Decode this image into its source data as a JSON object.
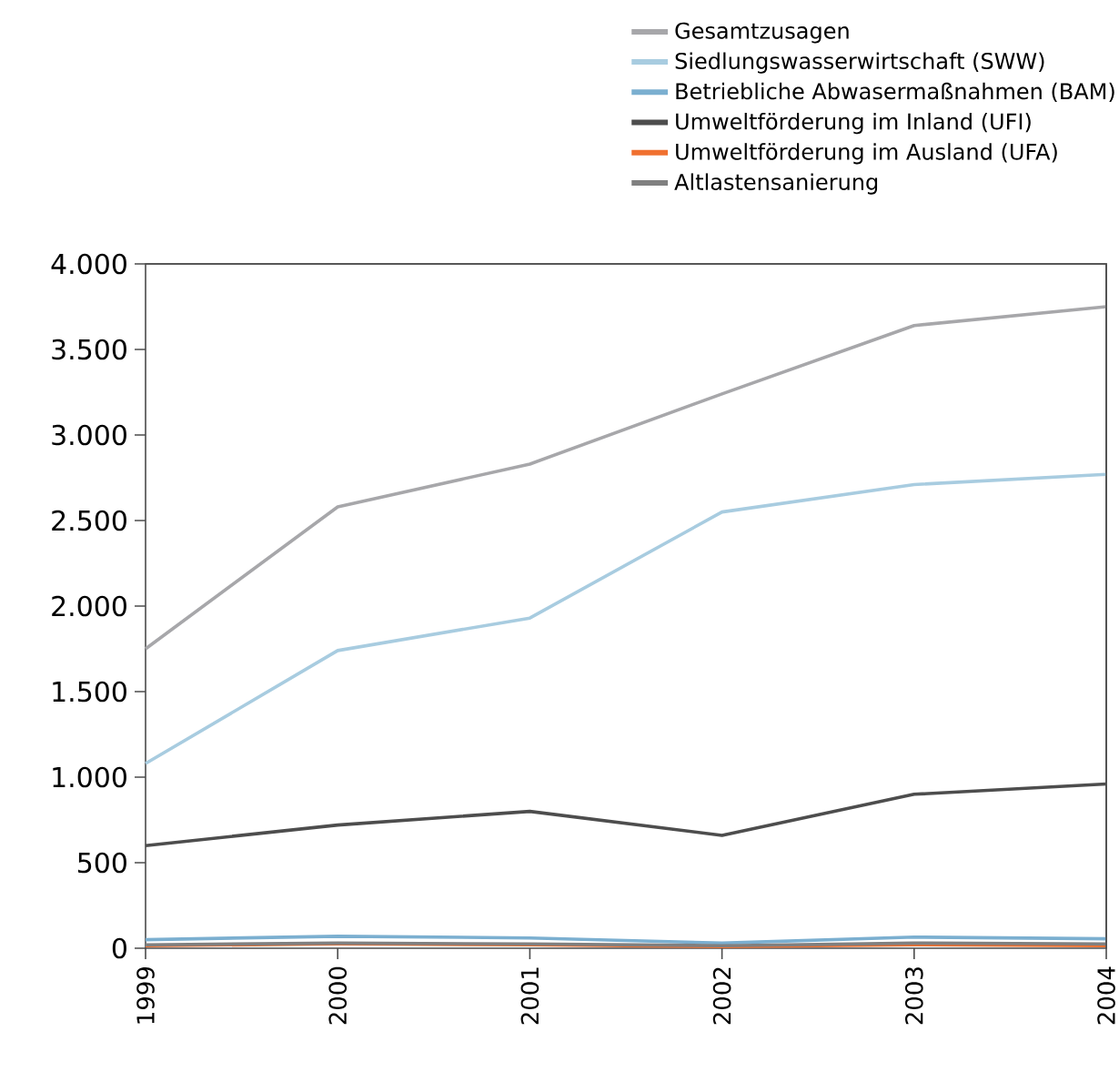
{
  "chart_data": {
    "type": "line",
    "categories": [
      "1999",
      "2000",
      "2001",
      "2002",
      "2003",
      "2004"
    ],
    "series": [
      {
        "name": "Gesamtzusagen",
        "color": "#a7a7aa",
        "values": [
          1750,
          2580,
          2830,
          3240,
          3640,
          3750
        ]
      },
      {
        "name": "Siedlungswasserwirtschaft (SWW)",
        "color": "#a8cce0",
        "values": [
          1080,
          1740,
          1930,
          2550,
          2710,
          2770
        ]
      },
      {
        "name": "Betriebliche Abwasermaßnahmen (BAM)",
        "color": "#7bafd0",
        "values": [
          50,
          70,
          60,
          30,
          65,
          55
        ]
      },
      {
        "name": "Umweltförderung im Inland (UFI)",
        "color": "#4d4d4d",
        "values": [
          600,
          720,
          800,
          660,
          900,
          960
        ]
      },
      {
        "name": "Umweltförderung im Ausland (UFA)",
        "color": "#f07030",
        "values": [
          15,
          25,
          20,
          10,
          20,
          15
        ]
      },
      {
        "name": "Altlastensanierung",
        "color": "#808080",
        "values": [
          20,
          30,
          25,
          15,
          30,
          25
        ]
      }
    ],
    "ylim": [
      0,
      4000
    ],
    "yticks": [
      0,
      500,
      {
        "value": 1000,
        "label": "1.000"
      },
      {
        "value": 1500,
        "label": "1.500"
      },
      {
        "value": 2000,
        "label": "2.000"
      },
      {
        "value": 2500,
        "label": "2.500"
      },
      {
        "value": 3000,
        "label": "3.000"
      },
      {
        "value": 3500,
        "label": "3.500"
      },
      {
        "value": 4000,
        "label": "4.000"
      }
    ],
    "grid": false,
    "legend": "top right",
    "marker": "none",
    "line_style": "solid"
  }
}
